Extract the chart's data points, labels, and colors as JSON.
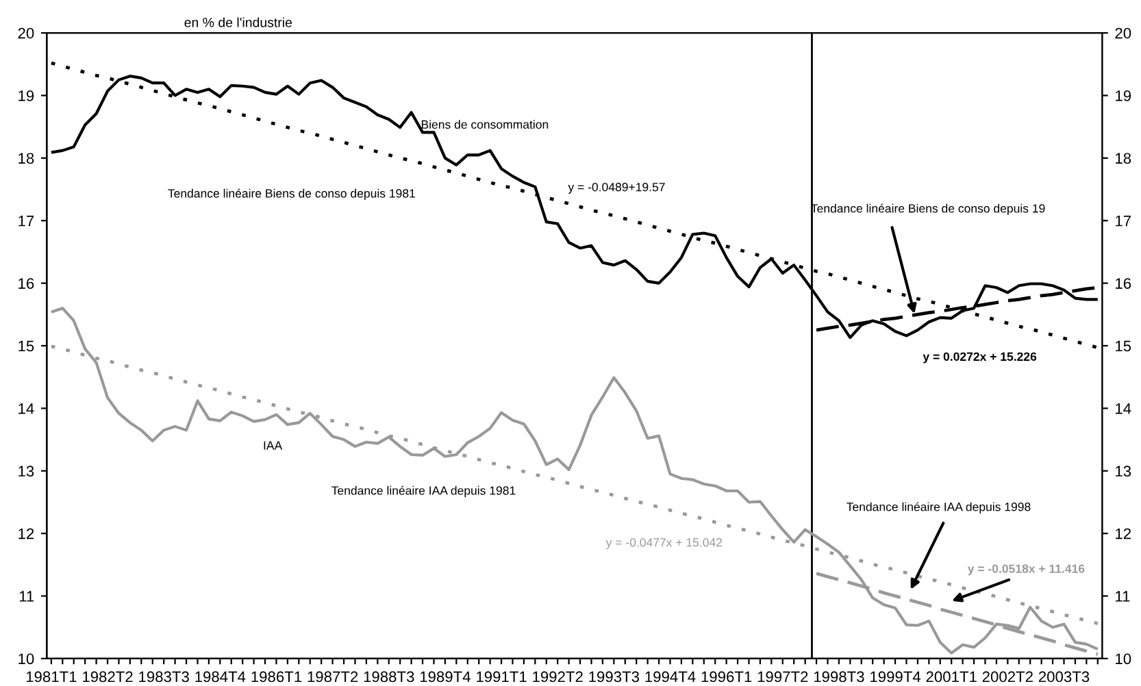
{
  "chart_data": {
    "type": "line",
    "ylabel": "en % de l'industrie",
    "categories": [
      "1981T1",
      null,
      null,
      null,
      null,
      "1982T2",
      null,
      null,
      null,
      null,
      "1983T3",
      null,
      null,
      null,
      null,
      "1984T4",
      null,
      null,
      null,
      null,
      "1986T1",
      null,
      null,
      null,
      null,
      "1987T2",
      null,
      null,
      null,
      null,
      "1988T3",
      null,
      null,
      null,
      null,
      "1989T4",
      null,
      null,
      null,
      null,
      "1991T1",
      null,
      null,
      null,
      null,
      "1992T2",
      null,
      null,
      null,
      null,
      "1993T3",
      null,
      null,
      null,
      null,
      "1994T4",
      null,
      null,
      null,
      null,
      "1996T1",
      null,
      null,
      null,
      null,
      "1997T2",
      null,
      null,
      null,
      null,
      "1998T3",
      null,
      null,
      null,
      null,
      "1999T4",
      null,
      null,
      null,
      null,
      "2001T1",
      null,
      null,
      null,
      null,
      "2002T2",
      null,
      null,
      null,
      null,
      "2003T3",
      null,
      null,
      null
    ],
    "series": [
      {
        "name": "Biens de consommation",
        "color": "#000000",
        "line_style": "solid",
        "values": [
          18.09,
          18.12,
          18.18,
          18.53,
          18.71,
          19.07,
          19.25,
          19.31,
          19.28,
          19.2,
          19.2,
          19.0,
          19.1,
          19.05,
          19.1,
          18.98,
          19.16,
          19.15,
          19.13,
          19.05,
          19.02,
          19.15,
          19.02,
          19.2,
          19.24,
          19.13,
          18.96,
          18.89,
          18.82,
          18.69,
          18.62,
          18.49,
          18.73,
          18.41,
          18.41,
          18.0,
          17.89,
          18.05,
          18.05,
          18.12,
          17.83,
          17.71,
          17.61,
          17.54,
          16.98,
          16.95,
          16.65,
          16.56,
          16.6,
          16.33,
          16.29,
          16.36,
          16.22,
          16.03,
          16.0,
          16.18,
          16.41,
          16.78,
          16.8,
          16.76,
          16.41,
          16.11,
          15.94,
          16.25,
          16.39,
          16.16,
          16.29,
          16.05,
          15.8,
          15.54,
          15.4,
          15.13,
          15.33,
          15.4,
          15.35,
          15.23,
          15.16,
          15.25,
          15.38,
          15.45,
          15.44,
          15.56,
          15.6,
          15.96,
          15.93,
          15.85,
          15.96,
          15.99,
          15.99,
          15.96,
          15.89,
          15.76,
          15.74,
          15.74
        ]
      },
      {
        "name": "IAA",
        "color": "#999999",
        "line_style": "solid",
        "values": [
          15.54,
          15.6,
          15.4,
          14.95,
          14.73,
          14.17,
          13.92,
          13.77,
          13.65,
          13.48,
          13.65,
          13.71,
          13.65,
          14.12,
          13.83,
          13.8,
          13.94,
          13.88,
          13.79,
          13.82,
          13.9,
          13.74,
          13.77,
          13.92,
          13.74,
          13.55,
          13.5,
          13.39,
          13.46,
          13.44,
          13.54,
          13.39,
          13.26,
          13.25,
          13.36,
          13.23,
          13.26,
          13.45,
          13.55,
          13.68,
          13.93,
          13.81,
          13.75,
          13.48,
          13.1,
          13.19,
          13.02,
          13.41,
          13.89,
          14.18,
          14.49,
          14.25,
          13.96,
          13.52,
          13.56,
          12.95,
          12.88,
          12.86,
          12.79,
          12.76,
          12.68,
          12.68,
          12.5,
          12.51,
          12.28,
          12.06,
          11.86,
          12.06,
          11.95,
          11.83,
          11.7,
          11.48,
          11.26,
          10.97,
          10.86,
          10.81,
          10.54,
          10.53,
          10.6,
          10.26,
          10.09,
          10.22,
          10.18,
          10.33,
          10.55,
          10.53,
          10.48,
          10.82,
          10.6,
          10.5,
          10.55,
          10.26,
          10.23,
          10.15
        ]
      },
      {
        "name": "Tendance linéaire Biens de conso depuis 1981",
        "color": "#000000",
        "line_style": "dotted",
        "values": [
          19.52,
          19.47,
          19.42,
          19.37,
          19.32,
          19.28,
          19.23,
          19.18,
          19.13,
          19.08,
          19.03,
          18.98,
          18.93,
          18.88,
          18.84,
          18.79,
          18.74,
          18.69,
          18.64,
          18.59,
          18.54,
          18.49,
          18.44,
          18.4,
          18.35,
          18.3,
          18.25,
          18.2,
          18.15,
          18.1,
          18.05,
          18.0,
          17.96,
          17.91,
          17.86,
          17.81,
          17.76,
          17.71,
          17.66,
          17.61,
          17.56,
          17.52,
          17.47,
          17.42,
          17.37,
          17.32,
          17.27,
          17.22,
          17.17,
          17.12,
          17.08,
          17.03,
          16.98,
          16.93,
          16.88,
          16.83,
          16.78,
          16.73,
          16.68,
          16.64,
          16.59,
          16.54,
          16.49,
          16.44,
          16.39,
          16.34,
          16.29,
          16.24,
          16.19,
          16.15,
          16.1,
          16.05,
          16.0,
          15.95,
          15.9,
          15.85,
          15.8,
          15.75,
          15.71,
          15.66,
          15.61,
          15.56,
          15.51,
          15.46,
          15.41,
          15.36,
          15.31,
          15.27,
          15.22,
          15.17,
          15.12,
          15.07,
          15.02,
          14.97
        ]
      },
      {
        "name": "Tendance linéaire Biens de conso depuis 19",
        "color": "#000000",
        "line_style": "dashed",
        "values": [
          null,
          null,
          null,
          null,
          null,
          null,
          null,
          null,
          null,
          null,
          null,
          null,
          null,
          null,
          null,
          null,
          null,
          null,
          null,
          null,
          null,
          null,
          null,
          null,
          null,
          null,
          null,
          null,
          null,
          null,
          null,
          null,
          null,
          null,
          null,
          null,
          null,
          null,
          null,
          null,
          null,
          null,
          null,
          null,
          null,
          null,
          null,
          null,
          null,
          null,
          null,
          null,
          null,
          null,
          null,
          null,
          null,
          null,
          null,
          null,
          null,
          null,
          null,
          null,
          null,
          null,
          null,
          null,
          15.25,
          15.28,
          15.31,
          15.33,
          15.36,
          15.39,
          15.42,
          15.44,
          15.47,
          15.5,
          15.53,
          15.55,
          15.58,
          15.61,
          15.63,
          15.66,
          15.69,
          15.72,
          15.74,
          15.77,
          15.8,
          15.82,
          15.85,
          15.88,
          15.91,
          15.93
        ]
      },
      {
        "name": "Tendance linéaire IAA depuis 1981",
        "color": "#999999",
        "line_style": "dotted",
        "values": [
          14.99,
          14.95,
          14.9,
          14.85,
          14.8,
          14.76,
          14.71,
          14.66,
          14.61,
          14.57,
          14.52,
          14.47,
          14.42,
          14.37,
          14.33,
          14.28,
          14.23,
          14.18,
          14.14,
          14.09,
          14.04,
          13.99,
          13.94,
          13.9,
          13.85,
          13.8,
          13.75,
          13.71,
          13.66,
          13.61,
          13.56,
          13.52,
          13.47,
          13.42,
          13.37,
          13.32,
          13.28,
          13.23,
          13.18,
          13.13,
          13.09,
          13.04,
          12.99,
          12.94,
          12.9,
          12.85,
          12.8,
          12.75,
          12.7,
          12.66,
          12.61,
          12.56,
          12.51,
          12.47,
          12.42,
          12.37,
          12.32,
          12.28,
          12.23,
          12.18,
          12.13,
          12.08,
          12.04,
          11.99,
          11.94,
          11.89,
          11.85,
          11.8,
          11.75,
          11.7,
          11.66,
          11.61,
          11.56,
          11.51,
          11.46,
          11.42,
          11.37,
          11.32,
          11.27,
          11.23,
          11.18,
          11.13,
          11.08,
          11.04,
          10.99,
          10.94,
          10.89,
          10.84,
          10.8,
          10.75,
          10.7,
          10.65,
          10.61,
          10.56
        ]
      },
      {
        "name": "Tendance linéaire IAA depuis 1998",
        "color": "#999999",
        "line_style": "dashed",
        "values": [
          null,
          null,
          null,
          null,
          null,
          null,
          null,
          null,
          null,
          null,
          null,
          null,
          null,
          null,
          null,
          null,
          null,
          null,
          null,
          null,
          null,
          null,
          null,
          null,
          null,
          null,
          null,
          null,
          null,
          null,
          null,
          null,
          null,
          null,
          null,
          null,
          null,
          null,
          null,
          null,
          null,
          null,
          null,
          null,
          null,
          null,
          null,
          null,
          null,
          null,
          null,
          null,
          null,
          null,
          null,
          null,
          null,
          null,
          null,
          null,
          null,
          null,
          null,
          null,
          null,
          null,
          null,
          null,
          11.36,
          11.31,
          11.26,
          11.21,
          11.16,
          11.11,
          11.05,
          11.0,
          10.95,
          10.9,
          10.85,
          10.79,
          10.74,
          10.69,
          10.64,
          10.59,
          10.54,
          10.48,
          10.43,
          10.38,
          10.33,
          10.28,
          10.22,
          10.17,
          10.12,
          10.07
        ]
      }
    ],
    "annotations": [
      "y = -0.0489+19.57",
      "y = 0.0272x + 15.226",
      "y = -0.0477x + 15.042",
      "y = -0.0518x + 11.416"
    ],
    "ylim": [
      10,
      20
    ],
    "yticks": [
      10,
      11,
      12,
      13,
      14,
      15,
      16,
      17,
      18,
      19,
      20
    ],
    "y2lim": [
      10,
      20
    ],
    "y2ticks": [
      10,
      11,
      12,
      13,
      14,
      15,
      16,
      17,
      18,
      19,
      20
    ],
    "grid": false,
    "legend": false,
    "marker": "none"
  }
}
